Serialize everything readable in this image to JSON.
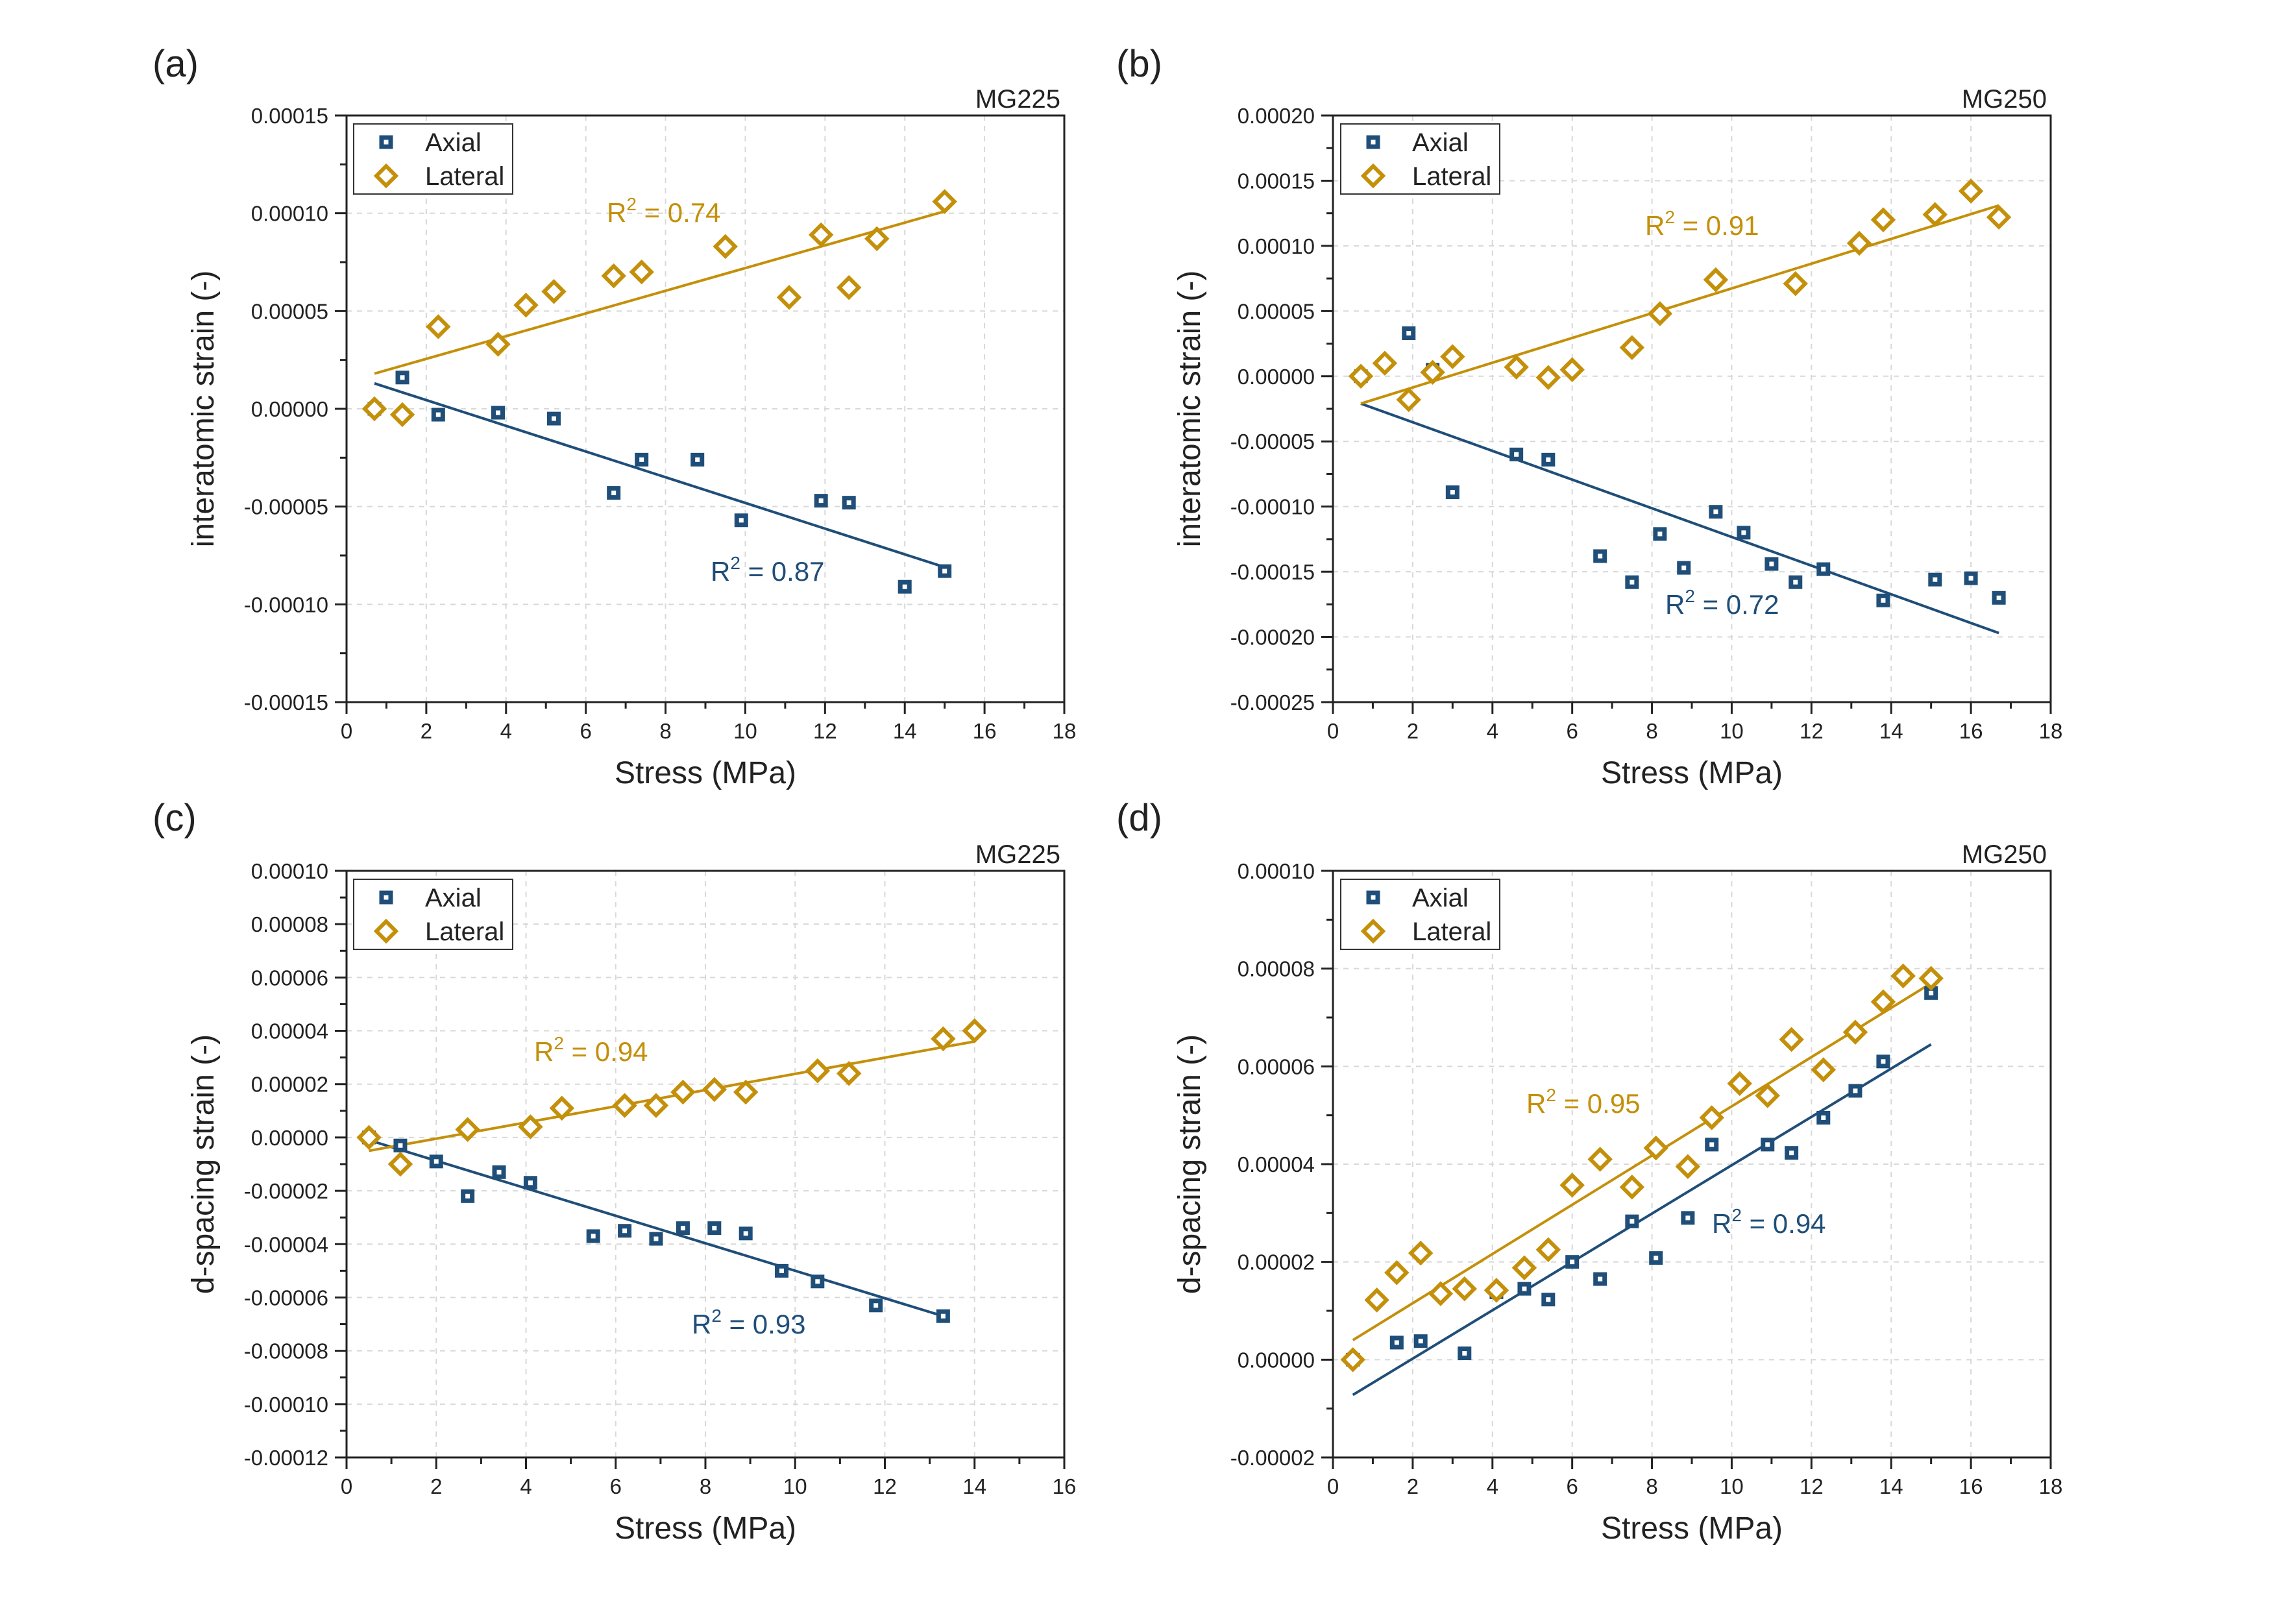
{
  "colors": {
    "axial": "#1f4e79",
    "lateral": "#c4900a",
    "axis": "#222222",
    "grid": "#d8d8d8"
  },
  "chart_data": [
    {
      "panel": "(a)",
      "sample": "MG225",
      "type": "scatter",
      "xlabel": "Stress (MPa)",
      "ylabel": "interatomic strain (-)",
      "xlim": [
        0,
        18
      ],
      "ylim": [
        -0.00015,
        0.00015
      ],
      "xticks": [
        0,
        2,
        4,
        6,
        8,
        10,
        12,
        14,
        16,
        18
      ],
      "yticks": [
        -0.00015,
        -0.0001,
        -5e-05,
        0,
        5e-05,
        0.0001,
        0.00015
      ],
      "ytick_labels": [
        "-0.00015",
        "-0.00010",
        "-0.00005",
        "0.00000",
        "0.00005",
        "0.00010",
        "0.00015"
      ],
      "grid": true,
      "legend": "top-left",
      "series": [
        {
          "name": "Axial",
          "marker": "square",
          "r2": "R2 = 0.87",
          "x": [
            0.7,
            1.4,
            2.3,
            3.8,
            5.2,
            6.7,
            7.4,
            8.8,
            9.9,
            11.9,
            12.6,
            14.0,
            15.0
          ],
          "y": [
            0.0,
            1.6e-05,
            -3e-06,
            -2e-06,
            -5e-06,
            -4.3e-05,
            -2.6e-05,
            -2.6e-05,
            -5.7e-05,
            -4.7e-05,
            -4.8e-05,
            -9.1e-05,
            -8.3e-05
          ],
          "fit": {
            "x": [
              0.7,
              15.0
            ],
            "y": [
              1.3e-05,
              -8.1e-05
            ]
          }
        },
        {
          "name": "Lateral",
          "marker": "diamond",
          "r2": "R2 = 0.74",
          "x": [
            0.7,
            1.4,
            2.3,
            3.8,
            4.5,
            5.2,
            6.7,
            7.4,
            9.5,
            11.1,
            11.9,
            12.6,
            13.3,
            15.0
          ],
          "y": [
            0.0,
            -3e-06,
            4.2e-05,
            3.3e-05,
            5.3e-05,
            6e-05,
            6.8e-05,
            7e-05,
            8.3e-05,
            5.7e-05,
            8.9e-05,
            6.2e-05,
            8.7e-05,
            0.000106
          ],
          "fit": {
            "x": [
              0.7,
              15.0
            ],
            "y": [
              1.8e-05,
              0.000101
            ]
          }
        }
      ]
    },
    {
      "panel": "(b)",
      "sample": "MG250",
      "type": "scatter",
      "xlabel": "Stress (MPa)",
      "ylabel": "interatomic strain (-)",
      "xlim": [
        0,
        18
      ],
      "ylim": [
        -0.00025,
        0.0002
      ],
      "xticks": [
        0,
        2,
        4,
        6,
        8,
        10,
        12,
        14,
        16,
        18
      ],
      "yticks": [
        -0.00025,
        -0.0002,
        -0.00015,
        -0.0001,
        -5e-05,
        0,
        5e-05,
        0.0001,
        0.00015,
        0.0002
      ],
      "ytick_labels": [
        "-0.00025",
        "-0.00020",
        "-0.00015",
        "-0.00010",
        "-0.00005",
        "0.00000",
        "0.00005",
        "0.00010",
        "0.00015",
        "0.00020"
      ],
      "grid": true,
      "legend": "top-left",
      "series": [
        {
          "name": "Axial",
          "marker": "square",
          "r2": "R2 = 0.72",
          "x": [
            0.7,
            1.9,
            2.5,
            3.0,
            4.6,
            5.4,
            6.7,
            7.5,
            8.2,
            8.8,
            9.6,
            10.3,
            11.0,
            11.6,
            12.3,
            13.8,
            15.1,
            16.0,
            16.7
          ],
          "y": [
            0.0,
            3.3e-05,
            5e-06,
            -8.9e-05,
            -6e-05,
            -6.4e-05,
            -0.000138,
            -0.000158,
            -0.000121,
            -0.000147,
            -0.000104,
            -0.00012,
            -0.000144,
            -0.000158,
            -0.000148,
            -0.000172,
            -0.000156,
            -0.000155,
            -0.00017
          ],
          "fit": {
            "x": [
              0.7,
              16.7
            ],
            "y": [
              -2.1e-05,
              -0.000197
            ]
          }
        },
        {
          "name": "Lateral",
          "marker": "diamond",
          "r2": "R2 = 0.91",
          "x": [
            0.7,
            1.3,
            1.9,
            2.5,
            3.0,
            4.6,
            5.4,
            6.0,
            7.5,
            8.2,
            9.6,
            11.6,
            13.2,
            13.8,
            15.1,
            16.0,
            16.7
          ],
          "y": [
            0.0,
            1e-05,
            -1.8e-05,
            3e-06,
            1.5e-05,
            7e-06,
            -1e-06,
            5e-06,
            2.2e-05,
            4.8e-05,
            7.4e-05,
            7.1e-05,
            0.000102,
            0.00012,
            0.000124,
            0.000142,
            0.000122
          ],
          "fit": {
            "x": [
              0.7,
              16.7
            ],
            "y": [
              -2.1e-05,
              0.000131
            ]
          }
        }
      ]
    },
    {
      "panel": "(c)",
      "sample": "MG225",
      "type": "scatter",
      "xlabel": "Stress (MPa)",
      "ylabel": "d-spacing strain (-)",
      "xlim": [
        0,
        16
      ],
      "ylim": [
        -0.00012,
        0.0001
      ],
      "xticks": [
        0,
        2,
        4,
        6,
        8,
        10,
        12,
        14,
        16
      ],
      "yticks": [
        -0.00012,
        -0.0001,
        -8e-05,
        -6e-05,
        -4e-05,
        -2e-05,
        0,
        2e-05,
        4e-05,
        6e-05,
        8e-05,
        0.0001
      ],
      "ytick_labels": [
        "-0.00012",
        "-0.00010",
        "-0.00008",
        "-0.00006",
        "-0.00004",
        "-0.00002",
        "0.00000",
        "0.00002",
        "0.00004",
        "0.00006",
        "0.00008",
        "0.00010"
      ],
      "grid": true,
      "legend": "top-left",
      "series": [
        {
          "name": "Axial",
          "marker": "square",
          "r2": "R2 = 0.93",
          "x": [
            0.5,
            1.2,
            2.0,
            2.7,
            3.4,
            4.1,
            5.5,
            6.2,
            6.9,
            7.5,
            8.2,
            8.9,
            9.7,
            10.5,
            11.8,
            13.3
          ],
          "y": [
            0.0,
            -3e-06,
            -9e-06,
            -2.2e-05,
            -1.3e-05,
            -1.7e-05,
            -3.7e-05,
            -3.5e-05,
            -3.8e-05,
            -3.4e-05,
            -3.4e-05,
            -3.6e-05,
            -5e-05,
            -5.4e-05,
            -6.3e-05,
            -6.7e-05
          ],
          "fit": {
            "x": [
              0.5,
              13.3
            ],
            "y": [
              -1e-06,
              -6.7e-05
            ]
          }
        },
        {
          "name": "Lateral",
          "marker": "diamond",
          "r2": "R2 = 0.94",
          "x": [
            0.5,
            1.2,
            2.7,
            4.1,
            4.8,
            6.2,
            6.9,
            7.5,
            8.2,
            8.9,
            10.5,
            11.2,
            13.3,
            14.0
          ],
          "y": [
            0.0,
            -1e-05,
            3e-06,
            4e-06,
            1.1e-05,
            1.2e-05,
            1.2e-05,
            1.7e-05,
            1.8e-05,
            1.7e-05,
            2.5e-05,
            2.4e-05,
            3.7e-05,
            4e-05
          ],
          "fit": {
            "x": [
              0.5,
              14.0
            ],
            "y": [
              -5e-06,
              3.6e-05
            ]
          }
        }
      ]
    },
    {
      "panel": "(d)",
      "sample": "MG250",
      "type": "scatter",
      "xlabel": "Stress (MPa)",
      "ylabel": "d-spacing strain (-)",
      "xlim": [
        0,
        18
      ],
      "ylim": [
        -2e-05,
        0.0001
      ],
      "xticks": [
        0,
        2,
        4,
        6,
        8,
        10,
        12,
        14,
        16,
        18
      ],
      "yticks": [
        -2e-05,
        0,
        2e-05,
        4e-05,
        6e-05,
        8e-05,
        0.0001
      ],
      "ytick_labels": [
        "-0.00002",
        "0.00000",
        "0.00002",
        "0.00004",
        "0.00006",
        "0.00008",
        "0.00010"
      ],
      "grid": true,
      "legend": "top-left",
      "series": [
        {
          "name": "Axial",
          "marker": "square",
          "r2": "R2 = 0.94",
          "x": [
            0.5,
            1.6,
            2.2,
            3.3,
            4.1,
            4.8,
            5.4,
            6.0,
            6.7,
            7.5,
            8.1,
            8.9,
            9.5,
            10.9,
            11.5,
            12.3,
            13.1,
            13.8,
            15.0
          ],
          "y": [
            0.0,
            3.5e-06,
            3.8e-06,
            1.3e-06,
            1.38e-05,
            1.45e-05,
            1.23e-05,
            2e-05,
            1.65e-05,
            2.83e-05,
            2.08e-05,
            2.9e-05,
            4.4e-05,
            4.4e-05,
            4.23e-05,
            4.95e-05,
            5.5e-05,
            6.1e-05,
            7.5e-05
          ],
          "fit": {
            "x": [
              0.5,
              15.0
            ],
            "y": [
              -7.2e-06,
              6.45e-05
            ]
          }
        },
        {
          "name": "Lateral",
          "marker": "diamond",
          "r2": "R2 = 0.95",
          "x": [
            0.5,
            1.1,
            1.6,
            2.2,
            2.7,
            3.3,
            4.1,
            4.8,
            5.4,
            6.0,
            6.7,
            7.5,
            8.1,
            8.9,
            9.5,
            10.2,
            10.9,
            11.5,
            12.3,
            13.1,
            13.8,
            14.3,
            15.0
          ],
          "y": [
            0.0,
            1.22e-05,
            1.78e-05,
            2.18e-05,
            1.35e-05,
            1.45e-05,
            1.42e-05,
            1.88e-05,
            2.25e-05,
            3.57e-05,
            4.1e-05,
            3.53e-05,
            4.33e-05,
            3.95e-05,
            4.95e-05,
            5.65e-05,
            5.4e-05,
            6.55e-05,
            5.93e-05,
            6.7e-05,
            7.32e-05,
            7.85e-05,
            7.8e-05
          ],
          "fit": {
            "x": [
              0.5,
              15.0
            ],
            "y": [
              4e-06,
              7.7e-05
            ]
          }
        }
      ]
    }
  ]
}
